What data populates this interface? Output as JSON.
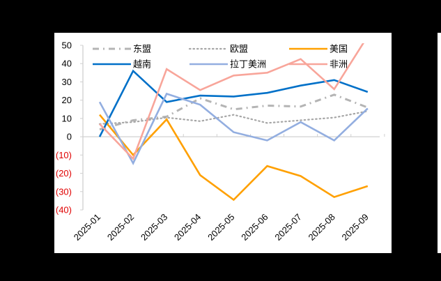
{
  "chart_data": {
    "type": "line",
    "title": "",
    "xlabel": "",
    "ylabel": "",
    "categories": [
      "2025-01",
      "2025-02",
      "2025-03",
      "2025-04",
      "2025-05",
      "2025-06",
      "2025-07",
      "2025-08",
      "2025-09"
    ],
    "ylim": [
      -40,
      50
    ],
    "yticks": [
      50,
      40,
      30,
      20,
      10,
      0,
      -10,
      -20,
      -30,
      -40
    ],
    "ytick_labels": [
      "50",
      "40",
      "30",
      "20",
      "10",
      "0",
      "(10)",
      "(20)",
      "(30)",
      "(40)"
    ],
    "negative_label_color": "#e00000",
    "grid": false,
    "legend_position": "top-inside",
    "series": [
      {
        "name": "东盟",
        "color": "#b4b4b4",
        "style": "dashdot",
        "values": [
          4,
          9,
          11,
          21,
          15,
          17,
          16.5,
          23,
          16
        ]
      },
      {
        "name": "欧盟",
        "color": "#a6a6a6",
        "style": "dotted",
        "values": [
          7,
          8,
          10.5,
          8.5,
          12,
          7.5,
          9,
          10.5,
          14
        ]
      },
      {
        "name": "美国",
        "color": "#ffa000",
        "style": "solid",
        "values": [
          12,
          -10,
          9.5,
          -21,
          -34.5,
          -16,
          -21.5,
          -33,
          -27
        ]
      },
      {
        "name": "越南",
        "color": "#0070c8",
        "style": "solid",
        "values": [
          0,
          36,
          19,
          22.5,
          22,
          24,
          28,
          31,
          24.5
        ]
      },
      {
        "name": "拉丁美洲",
        "color": "#93aee0",
        "style": "solid",
        "values": [
          19,
          -14.5,
          23.5,
          17.5,
          2.5,
          -2,
          8,
          -2,
          15.5
        ]
      },
      {
        "name": "非洲",
        "color": "#f8a59a",
        "style": "solid",
        "values": [
          7,
          -12,
          37,
          25.5,
          33.5,
          35,
          42.5,
          26,
          55
        ]
      }
    ]
  }
}
